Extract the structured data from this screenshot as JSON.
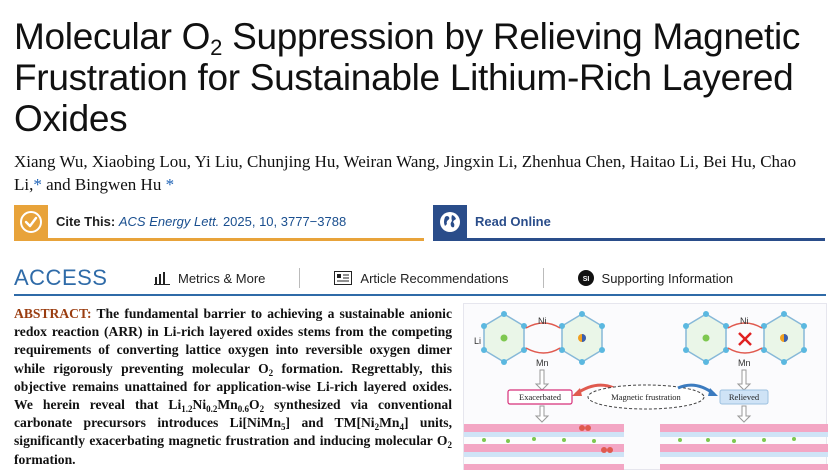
{
  "paper": {
    "title_part1": "Molecular O",
    "title_sub": "2",
    "title_part2": " Suppression by Relieving Magnetic Frustration for Sustainable Lithium-Rich Layered Oxides",
    "authors": "Xiang Wu, Xiaobing Lou, Yi Liu, Chunjing Hu, Weiran Wang, Jingxin Li, Zhenhua Chen, Haitao Li, Bei Hu, Chao Li,",
    "authors_tail": "and Bingwen Hu",
    "star": "*"
  },
  "cite": {
    "label": "Cite This:",
    "journal": "ACS Energy Lett.",
    "ref": "2025, 10, 3777−3788"
  },
  "read_online": {
    "label": "Read Online"
  },
  "access": {
    "label": "ACCESS",
    "items": [
      {
        "label": "Metrics & More"
      },
      {
        "label": "Article Recommendations"
      },
      {
        "label": "Supporting Information"
      }
    ]
  },
  "abstract": {
    "lead": "ABSTRACT:",
    "text1": " The fundamental barrier to achieving a sustainable anionic redox reaction (ARR) in Li-rich layered oxides stems from the competing requirements of converting lattice oxygen into reversible oxygen dimer while rigorously preventing molecular O",
    "text2": " formation. Regrettably, this objective remains unattained for application-wise Li-rich layered oxides. We herein reveal that Li",
    "text3": "Ni",
    "text4": "Mn",
    "text5": "O",
    "text6": " synthesized via conventional carbonate precursors introduces Li[NiMn",
    "text7": "] and TM[Ni",
    "text8": "Mn",
    "text9": "] units, significantly exacerbating magnetic frustration and inducing molecular O",
    "text10": " formation.",
    "s_2": "2",
    "s_li": "1.2",
    "s_ni": "0.2",
    "s_mn": "0.6",
    "s_5": "5",
    "s_4": "4"
  },
  "graphic": {
    "li_label": "Li",
    "ni_label_left": "Ni",
    "mn_label_left": "Mn",
    "ni_label_right": "Ni",
    "mn_label_right": "Mn",
    "exacerbated": "Exacerbated",
    "magnetic_frustration": "Magnetic frustration",
    "relieved": "Relieved",
    "colors": {
      "exacerbated_border": "#d7307a",
      "relieved_fill": "#cfe3f6",
      "arrow_red": "#e05a4f",
      "arrow_blue": "#3b7bbf"
    }
  }
}
